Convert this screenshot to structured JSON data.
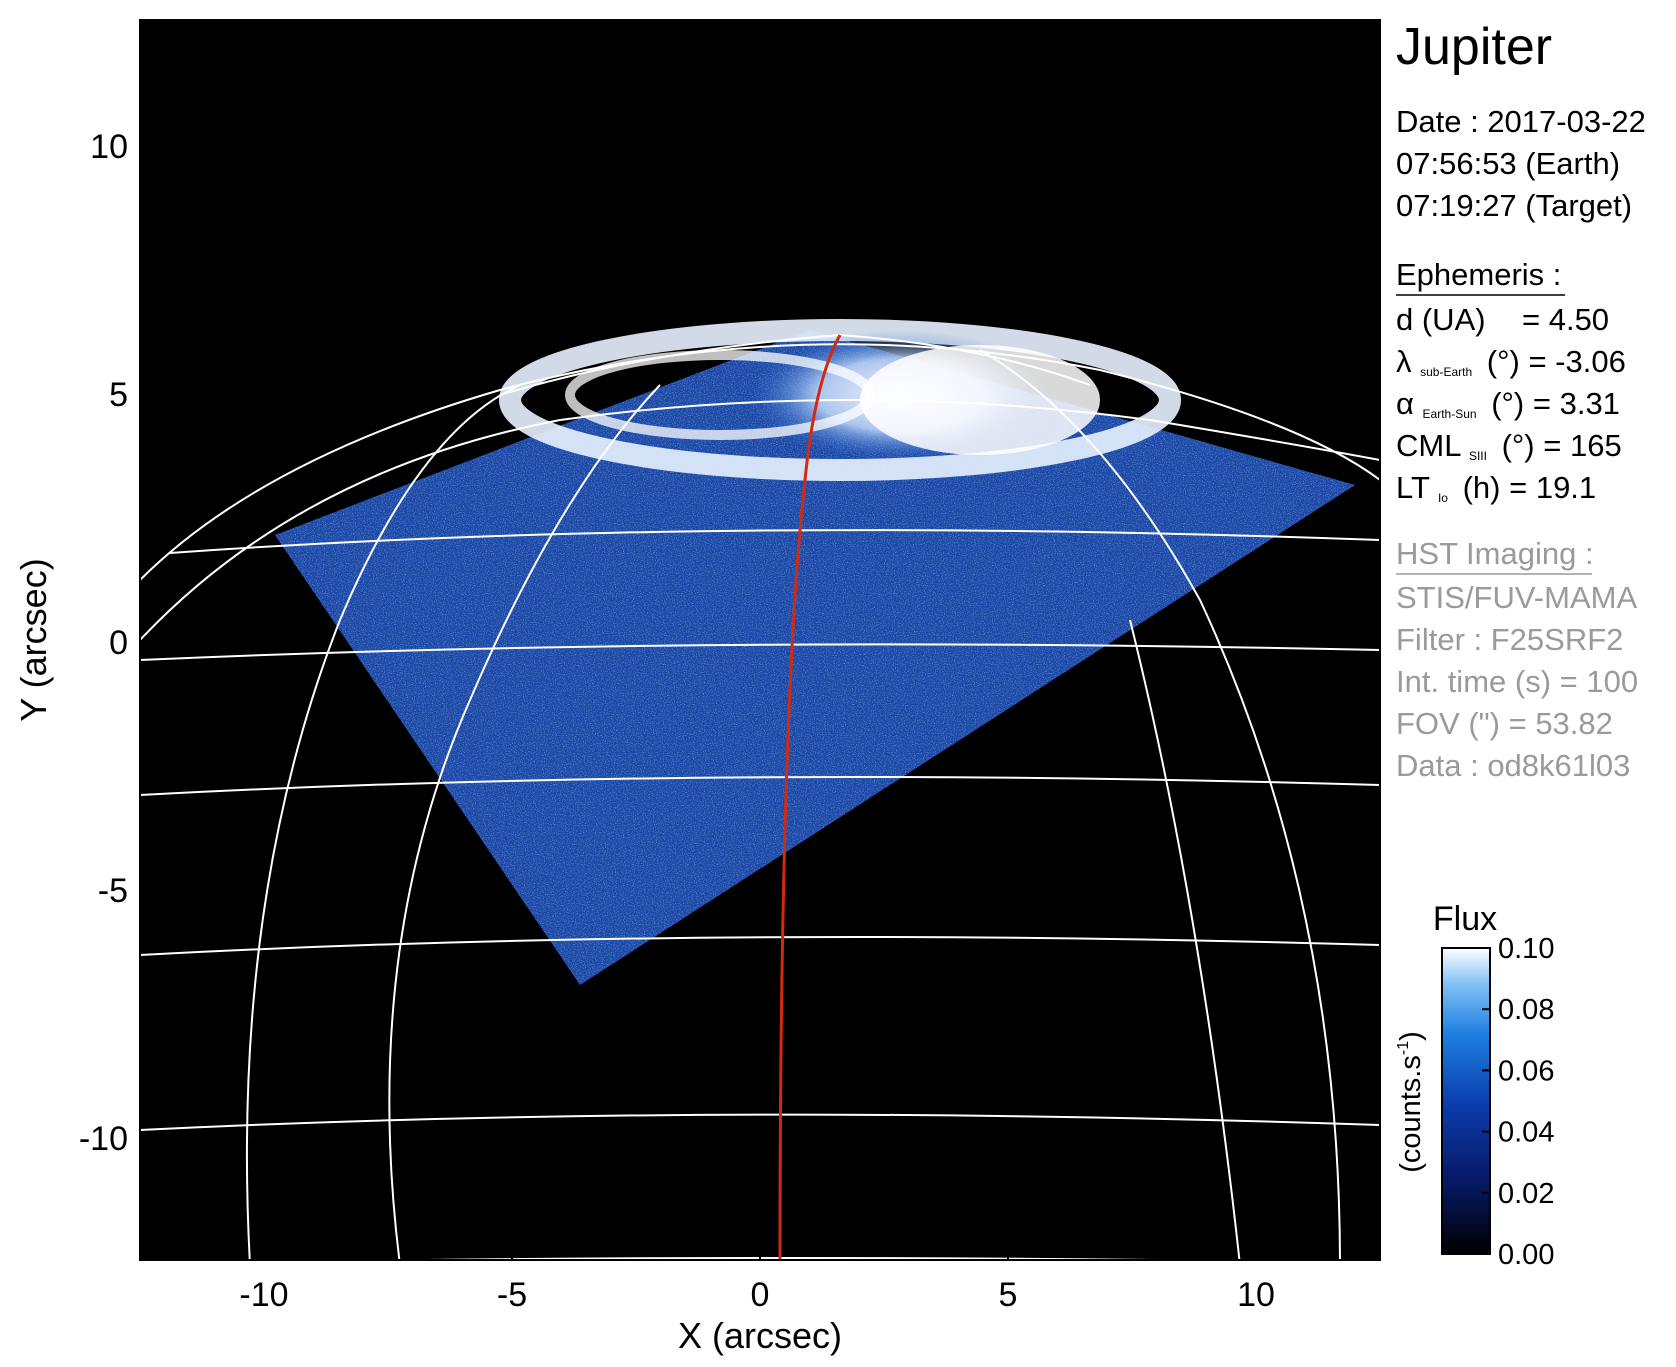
{
  "title": "Jupiter",
  "observation": {
    "date": "Date : 2017-03-22",
    "time_earth": "07:56:53 (Earth)",
    "time_target": "07:19:27 (Target)"
  },
  "ephemeris": {
    "heading": "Ephemeris :",
    "distance": {
      "label": "d (UA)",
      "value": "= 4.50"
    },
    "sub_earth_latitude": {
      "symbol": "λ",
      "subscript": "sub-Earth",
      "unit": "(°)",
      "value": "= -3.06"
    },
    "phase_angle": {
      "symbol": "α",
      "subscript": "Earth-Sun",
      "unit": "(°)",
      "value": "= 3.31"
    },
    "cml": {
      "symbol": "CML",
      "subscript": "SIII",
      "unit": "(°)",
      "value": "= 165"
    },
    "local_time": {
      "symbol": "LT",
      "subscript": "Io",
      "unit": "(h)",
      "value": "= 19.1"
    }
  },
  "hst_imaging": {
    "heading": "HST Imaging :",
    "instrument": "STIS/FUV-MAMA",
    "filter": "Filter : F25SRF2",
    "integration_time": "Int. time (s) = 100",
    "fov": "FOV (\") = 53.82",
    "data_id": "Data : od8k61l03"
  },
  "image_axes": {
    "xlabel": "X (arcsec)",
    "ylabel": "Y (arcsec)",
    "xlim": [
      -12.5,
      12.5
    ],
    "ylim": [
      -12.5,
      12.5
    ],
    "x_ticks": [
      -10,
      -5,
      0,
      5,
      10
    ],
    "y_ticks": [
      -10,
      -5,
      0,
      5,
      10
    ]
  },
  "colorbar": {
    "title": "Flux",
    "unit": "(counts.s",
    "unit_superscript": "-1",
    "unit_close": ")",
    "range": [
      0,
      0.1
    ],
    "ticks": [
      "0.00",
      "0.02",
      "0.04",
      "0.06",
      "0.08",
      "0.10"
    ]
  },
  "colors": {
    "background": "#000000",
    "grid": "#ffffff",
    "trace": "#d22a10",
    "emission_low": "#0a1a6e",
    "emission_mid": "#2f74d8",
    "emission_high": "#ffffff",
    "gray_text": "#9a9a9a"
  }
}
